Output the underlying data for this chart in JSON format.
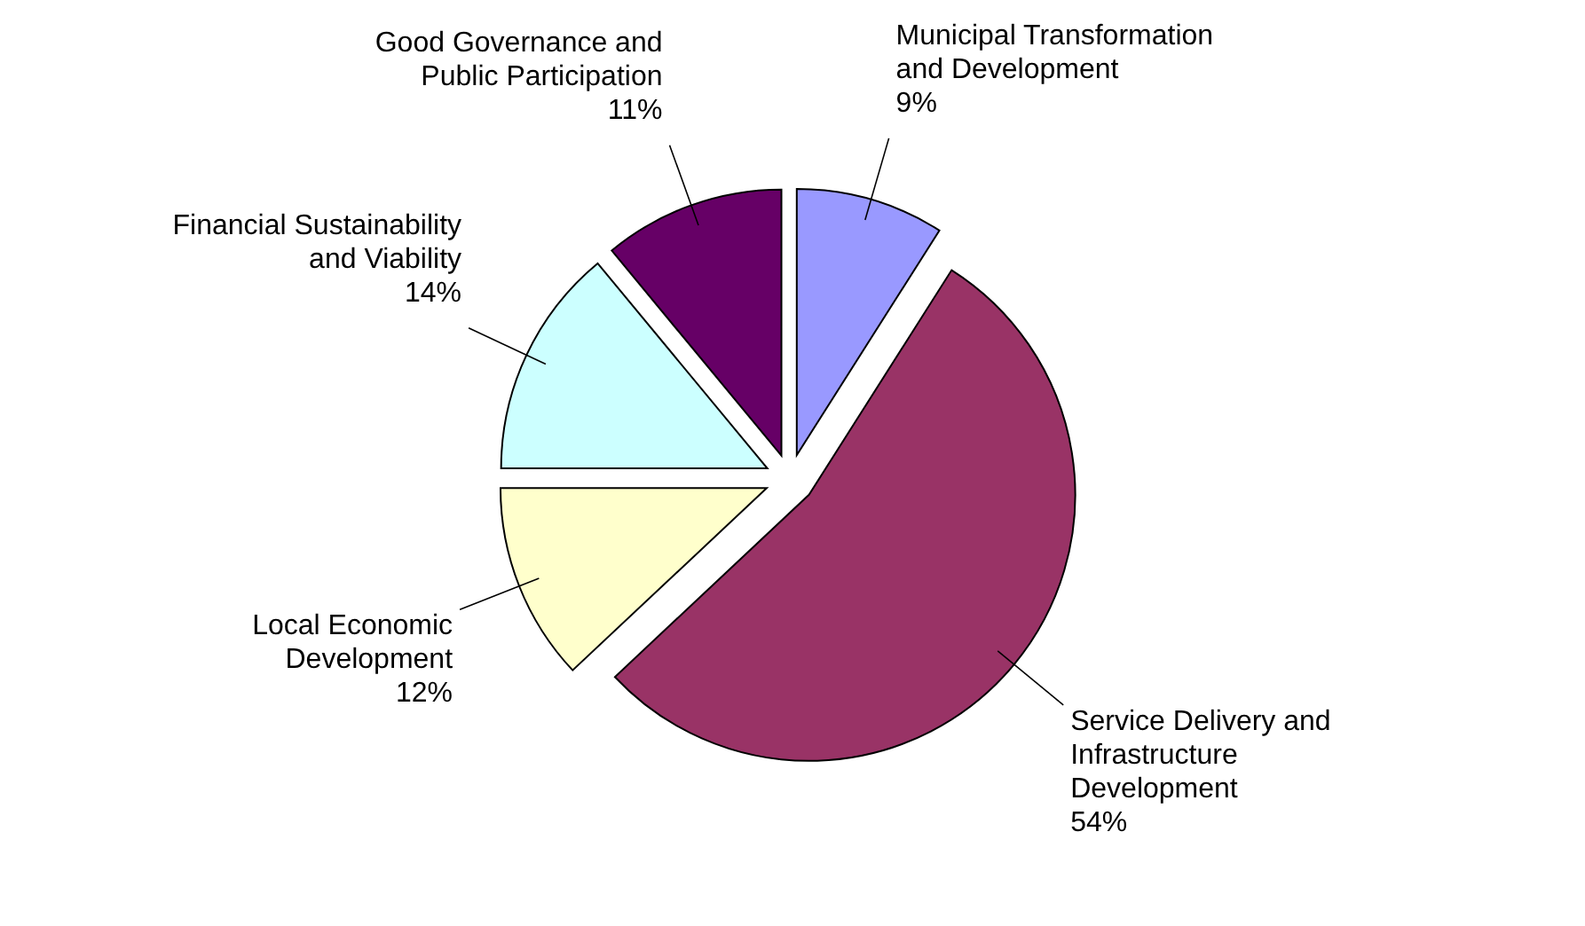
{
  "chart_data": {
    "type": "pie",
    "categories": [
      "Municipal Transformation and Development",
      "Service Delivery and Infrastructure Development",
      "Local Economic Development",
      "Financial Sustainability and Viability",
      "Good Governance and Public Participation"
    ],
    "values": [
      9,
      54,
      12,
      14,
      11
    ],
    "value_labels": [
      "9%",
      "54%",
      "12%",
      "14%",
      "11%"
    ],
    "colors": [
      "#9999ff",
      "#993366",
      "#ffffcc",
      "#ccffff",
      "#660066"
    ]
  }
}
